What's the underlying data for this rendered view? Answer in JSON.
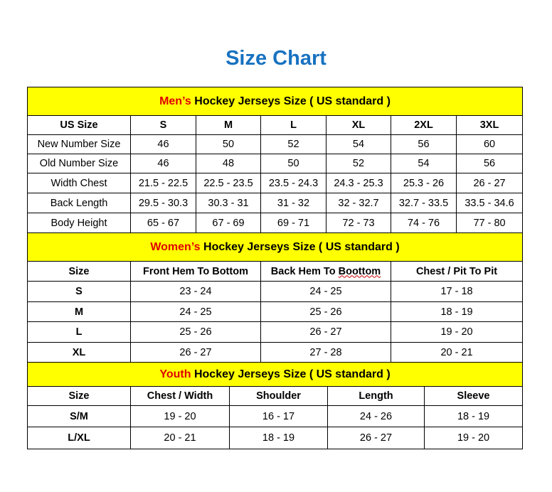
{
  "title": "Size Chart",
  "mens": {
    "title_highlight": "Men’s",
    "title_rest": " Hockey Jerseys Size ( US standard )",
    "headers": [
      "US Size",
      "S",
      "M",
      "L",
      "XL",
      "2XL",
      "3XL"
    ],
    "rows": [
      [
        "New Number Size",
        "46",
        "50",
        "52",
        "54",
        "56",
        "60"
      ],
      [
        "Old Number Size",
        "46",
        "48",
        "50",
        "52",
        "54",
        "56"
      ],
      [
        "Width Chest",
        "21.5 - 22.5",
        "22.5 - 23.5",
        "23.5 - 24.3",
        "24.3 - 25.3",
        "25.3 - 26",
        "26 - 27"
      ],
      [
        "Back Length",
        "29.5 - 30.3",
        "30.3 - 31",
        "31 - 32",
        "32 - 32.7",
        "32.7 - 33.5",
        "33.5 - 34.6"
      ],
      [
        "Body Height",
        "65 - 67",
        "67 - 69",
        "69 - 71",
        "72 - 73",
        "74 - 76",
        "77 - 80"
      ]
    ]
  },
  "womens": {
    "title_highlight": "Women’s",
    "title_rest": " Hockey Jerseys Size ( US standard )",
    "headers": [
      "Size",
      "Front Hem To Bottom",
      "Back Hem To Boottom",
      "Chest / Pit To Pit"
    ],
    "rows": [
      [
        "S",
        "23 - 24",
        "24 - 25",
        "17 - 18"
      ],
      [
        "M",
        "24 - 25",
        "25 - 26",
        "18 - 19"
      ],
      [
        "L",
        "25 - 26",
        "26 - 27",
        "19 - 20"
      ],
      [
        "XL",
        "26 - 27",
        "27 - 28",
        "20 - 21"
      ]
    ]
  },
  "youth": {
    "title_highlight": "Youth",
    "title_rest": " Hockey Jerseys Size ( US standard )",
    "headers": [
      "Size",
      "Chest / Width",
      "Shoulder",
      "Length",
      "Sleeve"
    ],
    "rows": [
      [
        "S/M",
        "19 - 20",
        "16 - 17",
        "24 - 26",
        "18 - 19"
      ],
      [
        "L/XL",
        "20 - 21",
        "18 - 19",
        "26 - 27",
        "19 - 20"
      ]
    ]
  },
  "colors": {
    "title": "#1872c0",
    "section_bg": "#ffff00",
    "highlight": "#e00000"
  }
}
